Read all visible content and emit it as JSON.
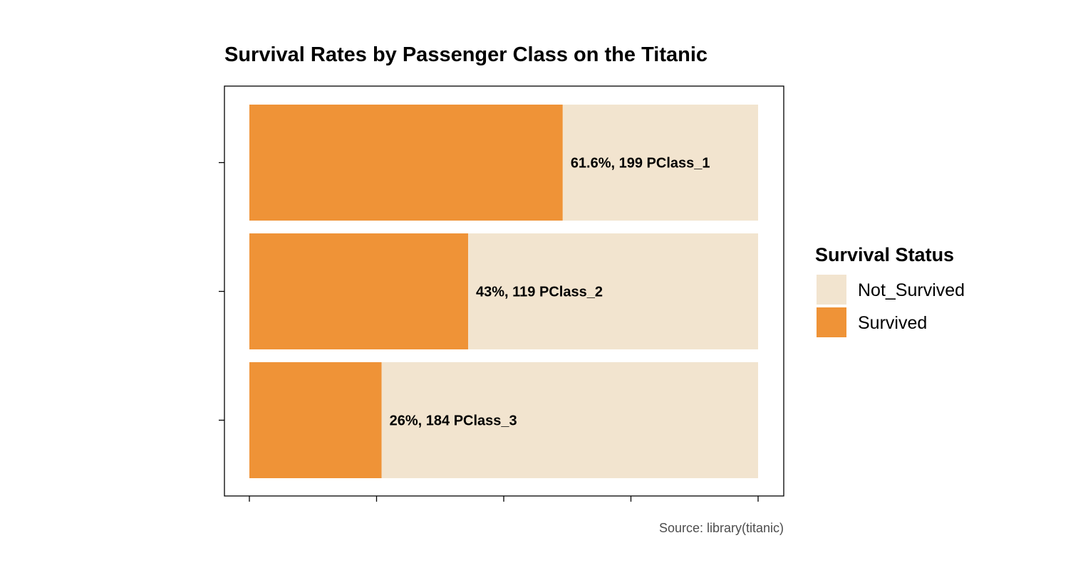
{
  "chart_data": {
    "type": "bar",
    "orientation": "horizontal",
    "stacked": "percent",
    "title": "Survival Rates by Passenger Class on the Titanic",
    "caption": "Source: library(titanic)",
    "categories": [
      "PClass_1",
      "PClass_2",
      "PClass_3"
    ],
    "series": [
      {
        "name": "Survived",
        "values": [
          61.6,
          43,
          26
        ],
        "color": "#EF9337"
      },
      {
        "name": "Not_Survived",
        "values": [
          38.4,
          57,
          74
        ],
        "color": "#F2E4CF"
      }
    ],
    "survived_counts": [
      199,
      119,
      184
    ],
    "bar_labels": [
      "61.6%, 199 PClass_1",
      "43%, 119 PClass_2",
      "26%, 184 PClass_3"
    ],
    "xlim": [
      0,
      100
    ],
    "x_ticks": [
      0,
      25,
      50,
      75,
      100
    ],
    "xlabel": "",
    "ylabel": "",
    "grid": false,
    "legend": {
      "title": "Survival Status",
      "position": "right",
      "entries": [
        {
          "label": "Not_Survived",
          "color": "#F2E4CF"
        },
        {
          "label": "Survived",
          "color": "#EF9337"
        }
      ]
    }
  }
}
